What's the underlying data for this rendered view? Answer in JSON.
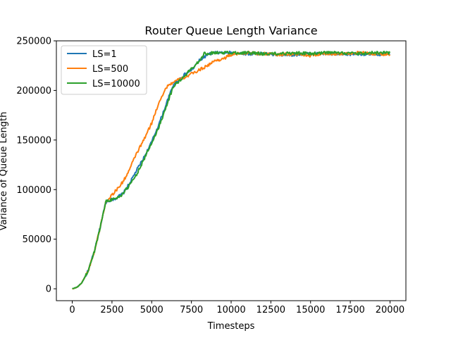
{
  "chart_data": {
    "type": "line",
    "title": "Router Queue Length Variance",
    "xlabel": "Timesteps",
    "ylabel": "Variance of Queue Length",
    "xlim": [
      -1000,
      21000
    ],
    "ylim": [
      -12000,
      250000
    ],
    "xticks": [
      0,
      2500,
      5000,
      7500,
      10000,
      12500,
      15000,
      17500,
      20000
    ],
    "yticks": [
      0,
      50000,
      100000,
      150000,
      200000,
      250000
    ],
    "grid": false,
    "legend_position": "top-left",
    "series": [
      {
        "name": "LS=1",
        "color": "#1f77b4",
        "points": [
          [
            0,
            0
          ],
          [
            300,
            1500
          ],
          [
            600,
            6000
          ],
          [
            1000,
            18000
          ],
          [
            1400,
            38000
          ],
          [
            1800,
            65000
          ],
          [
            2100,
            87000
          ],
          [
            2300,
            89000
          ],
          [
            2700,
            91000
          ],
          [
            3200,
            96000
          ],
          [
            3600,
            106000
          ],
          [
            4000,
            118000
          ],
          [
            4500,
            132000
          ],
          [
            5000,
            148000
          ],
          [
            5500,
            168000
          ],
          [
            6000,
            190000
          ],
          [
            6400,
            207000
          ],
          [
            7000,
            215000
          ],
          [
            7600,
            222000
          ],
          [
            8000,
            230000
          ],
          [
            8500,
            236000
          ],
          [
            9000,
            238000
          ],
          [
            10000,
            238000
          ],
          [
            11000,
            237000
          ],
          [
            12000,
            237000
          ],
          [
            13000,
            236000
          ],
          [
            14000,
            236000
          ],
          [
            15000,
            237000
          ],
          [
            16000,
            237000
          ],
          [
            17000,
            236000
          ],
          [
            18000,
            237000
          ],
          [
            19000,
            236000
          ],
          [
            20000,
            237000
          ]
        ]
      },
      {
        "name": "LS=500",
        "color": "#ff7f0e",
        "points": [
          [
            0,
            0
          ],
          [
            300,
            1500
          ],
          [
            600,
            6000
          ],
          [
            1000,
            18000
          ],
          [
            1400,
            38000
          ],
          [
            1800,
            65000
          ],
          [
            2100,
            87000
          ],
          [
            2400,
            93000
          ],
          [
            2800,
            100000
          ],
          [
            3200,
            108000
          ],
          [
            3600,
            120000
          ],
          [
            4000,
            135000
          ],
          [
            4500,
            150000
          ],
          [
            5000,
            167000
          ],
          [
            5500,
            190000
          ],
          [
            6000,
            205000
          ],
          [
            6600,
            210000
          ],
          [
            7200,
            214000
          ],
          [
            7800,
            219000
          ],
          [
            8500,
            225000
          ],
          [
            9000,
            230000
          ],
          [
            9500,
            232000
          ],
          [
            10000,
            236000
          ],
          [
            11000,
            238000
          ],
          [
            12000,
            237000
          ],
          [
            13000,
            236000
          ],
          [
            14000,
            237000
          ],
          [
            15000,
            235000
          ],
          [
            16000,
            237000
          ],
          [
            17000,
            237000
          ],
          [
            18000,
            238000
          ],
          [
            19000,
            237000
          ],
          [
            20000,
            236000
          ]
        ]
      },
      {
        "name": "LS=10000",
        "color": "#2ca02c",
        "points": [
          [
            0,
            0
          ],
          [
            300,
            1500
          ],
          [
            600,
            6000
          ],
          [
            1000,
            18000
          ],
          [
            1400,
            38000
          ],
          [
            1800,
            65000
          ],
          [
            2100,
            88000
          ],
          [
            2500,
            90000
          ],
          [
            3000,
            93000
          ],
          [
            3500,
            102000
          ],
          [
            4000,
            114000
          ],
          [
            4500,
            130000
          ],
          [
            5000,
            147000
          ],
          [
            5500,
            165000
          ],
          [
            6000,
            188000
          ],
          [
            6400,
            205000
          ],
          [
            7000,
            213000
          ],
          [
            7500,
            222000
          ],
          [
            8000,
            230000
          ],
          [
            8300,
            237000
          ],
          [
            9000,
            238000
          ],
          [
            10000,
            238000
          ],
          [
            11000,
            238000
          ],
          [
            12000,
            237000
          ],
          [
            13000,
            237000
          ],
          [
            14000,
            238000
          ],
          [
            15000,
            237000
          ],
          [
            16000,
            238000
          ],
          [
            17000,
            238000
          ],
          [
            18000,
            237000
          ],
          [
            19000,
            238000
          ],
          [
            20000,
            238000
          ]
        ]
      }
    ]
  }
}
